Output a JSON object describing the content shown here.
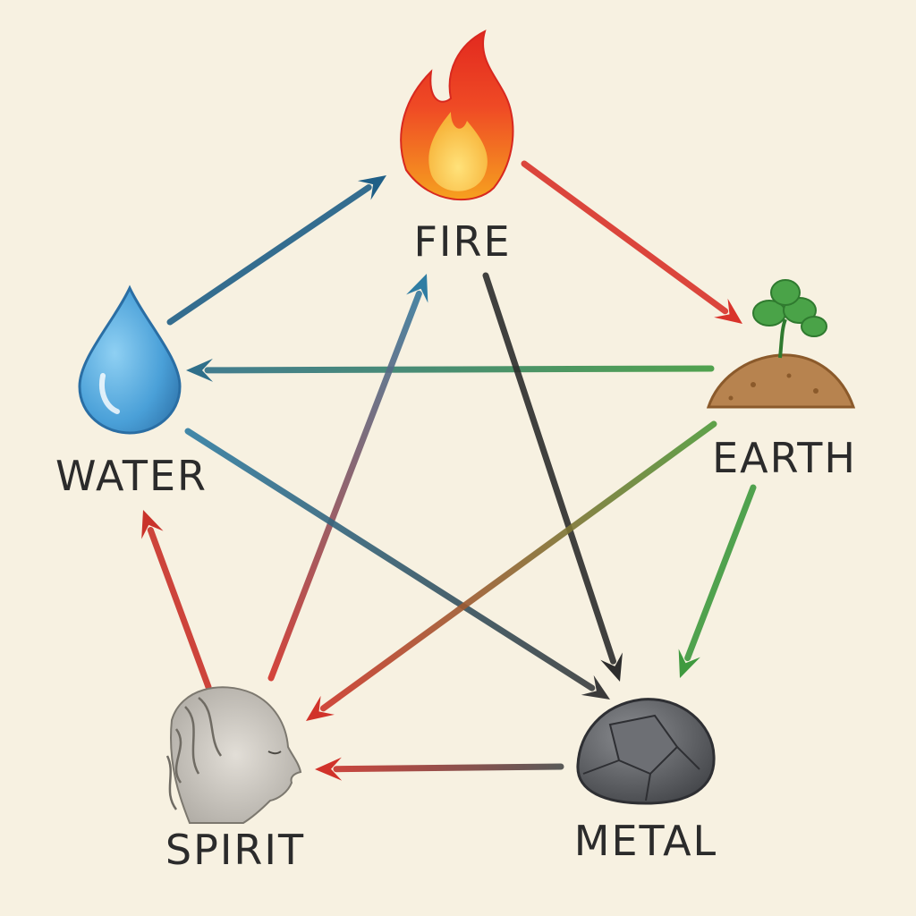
{
  "nodes": [
    {
      "id": "fire",
      "label": "FIRE",
      "icon": "flame-icon",
      "color": "#ef3b24"
    },
    {
      "id": "earth",
      "label": "EARTH",
      "icon": "sprout-mound-icon",
      "color": "#b07a44"
    },
    {
      "id": "metal",
      "label": "METAL",
      "icon": "rock-icon",
      "color": "#55575c"
    },
    {
      "id": "spirit",
      "label": "SPIRIT",
      "icon": "face-profile-icon",
      "color": "#b9b6b0"
    },
    {
      "id": "water",
      "label": "WATER",
      "icon": "water-drop-icon",
      "color": "#3f8ec9"
    }
  ],
  "edges": [
    {
      "from": "water",
      "to": "fire",
      "color": "#1f5f87"
    },
    {
      "from": "fire",
      "to": "earth",
      "color": "#d9332b"
    },
    {
      "from": "earth",
      "to": "water",
      "color": "#3f9a3f",
      "color_end": "#2f6f8a"
    },
    {
      "from": "earth",
      "to": "metal",
      "color": "#3f9a3f"
    },
    {
      "from": "metal",
      "to": "spirit",
      "color": "#4a4a4a",
      "color_end": "#d1322a"
    },
    {
      "from": "spirit",
      "to": "water",
      "color": "#c9322a"
    },
    {
      "from": "spirit",
      "to": "fire",
      "color": "#d1322a",
      "color_end": "#2f7da3"
    },
    {
      "from": "fire",
      "to": "metal",
      "color": "#2d2d2d"
    },
    {
      "from": "water",
      "to": "metal",
      "color": "#2f7da3",
      "color_end": "#3a3a3a"
    },
    {
      "from": "earth",
      "to": "spirit",
      "color": "#4f9a3a",
      "color_end": "#d1322a"
    }
  ]
}
